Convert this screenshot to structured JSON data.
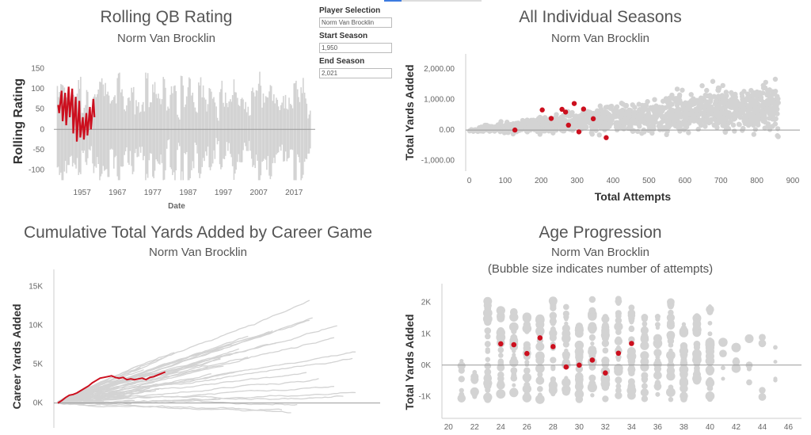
{
  "controls": {
    "player_label": "Player Selection",
    "player_value": "Norm Van Brocklin",
    "start_label": "Start Season",
    "start_value": "1,950",
    "end_label": "End Season",
    "end_value": "2,021"
  },
  "colors": {
    "highlight": "#cc0f1e",
    "background_series": "#d3d3d3",
    "zero_line": "#999999"
  },
  "chart_data": [
    {
      "id": "rolling",
      "type": "line",
      "title": "Rolling QB Rating",
      "subtitle": "Norm Van Brocklin",
      "xlabel": "Date",
      "ylabel": "Rolling Rating",
      "x_ticks": [
        "1957",
        "1967",
        "1977",
        "1987",
        "1997",
        "2007",
        "2017"
      ],
      "y_ticks": [
        "150",
        "100",
        "50",
        "0",
        "-50",
        "-100"
      ],
      "xlim": [
        1949,
        2023
      ],
      "ylim": [
        -130,
        170
      ],
      "highlight_series": {
        "name": "Norm Van Brocklin",
        "x": [
          1950.2,
          1950.5,
          1951.2,
          1951.5,
          1952.2,
          1952.5,
          1953.2,
          1953.5,
          1954.2,
          1954.5,
          1955.2,
          1955.5,
          1956.2,
          1956.5,
          1957.2,
          1957.5,
          1958.2,
          1958.5,
          1959.2,
          1959.5,
          1960.2,
          1960.5
        ],
        "y": [
          60,
          40,
          95,
          20,
          90,
          10,
          105,
          30,
          100,
          -10,
          80,
          -30,
          70,
          -20,
          30,
          -25,
          40,
          -15,
          55,
          0,
          75,
          30
        ]
      }
    },
    {
      "id": "seasons",
      "type": "scatter",
      "title": "All Individual Seasons",
      "subtitle": "Norm Van Brocklin",
      "xlabel": "Total Attempts",
      "ylabel": "Total Yards Added",
      "x_ticks": [
        "0",
        "100",
        "200",
        "300",
        "400",
        "500",
        "600",
        "700",
        "800",
        "900"
      ],
      "y_ticks": [
        "2,000.00",
        "1,000.00",
        "0.00",
        "-1,000.00"
      ],
      "xlim": [
        -10,
        920
      ],
      "ylim": [
        -1350,
        2500
      ],
      "highlight_points": {
        "x": [
          127,
          203,
          228,
          258,
          268,
          276,
          292,
          305,
          318,
          345,
          381
        ],
        "y": [
          0,
          660,
          380,
          680,
          590,
          160,
          870,
          -60,
          690,
          370,
          -250
        ]
      }
    },
    {
      "id": "cumulative",
      "type": "line",
      "title": "Cumulative Total Yards Added by Career Game",
      "subtitle": "Norm Van Brocklin",
      "xlabel": "",
      "ylabel": "Career Yards Added",
      "y_ticks": [
        "15K",
        "10K",
        "5K",
        "0K"
      ],
      "xlim": [
        0,
        420
      ],
      "ylim": [
        -3200,
        17200
      ],
      "highlight_series": {
        "name": "Norm Van Brocklin",
        "x": [
          0,
          5,
          10,
          15,
          20,
          25,
          30,
          35,
          40,
          45,
          50,
          55,
          60,
          65,
          70,
          75,
          80,
          85,
          90,
          95,
          100,
          105,
          110,
          115,
          120,
          125,
          130,
          135,
          140
        ],
        "y": [
          0,
          300,
          700,
          1000,
          1100,
          1300,
          1600,
          1900,
          2200,
          2600,
          2900,
          3200,
          3300,
          3400,
          3500,
          3300,
          3200,
          3300,
          3000,
          3100,
          3000,
          3100,
          3200,
          3000,
          3300,
          3400,
          3600,
          3800,
          4000
        ]
      }
    },
    {
      "id": "age",
      "type": "scatter",
      "title": "Age Progression",
      "subtitle": "Norm Van Brocklin",
      "subtitle2": "(Bubble size indicates number of attempts)",
      "xlabel": "",
      "ylabel": "Total Yards Added",
      "x_ticks": [
        "20",
        "22",
        "24",
        "26",
        "28",
        "30",
        "32",
        "34",
        "36",
        "38",
        "40",
        "42",
        "44",
        "46"
      ],
      "y_ticks": [
        "2K",
        "1K",
        "0K",
        "-1K"
      ],
      "xlim": [
        19.5,
        47
      ],
      "ylim": [
        -1700,
        2600
      ],
      "highlight_points": {
        "x": [
          24,
          25,
          26,
          27,
          28,
          29,
          30,
          31,
          32,
          33,
          34
        ],
        "y": [
          680,
          650,
          370,
          870,
          590,
          -60,
          0,
          160,
          -250,
          380,
          690
        ]
      }
    }
  ]
}
